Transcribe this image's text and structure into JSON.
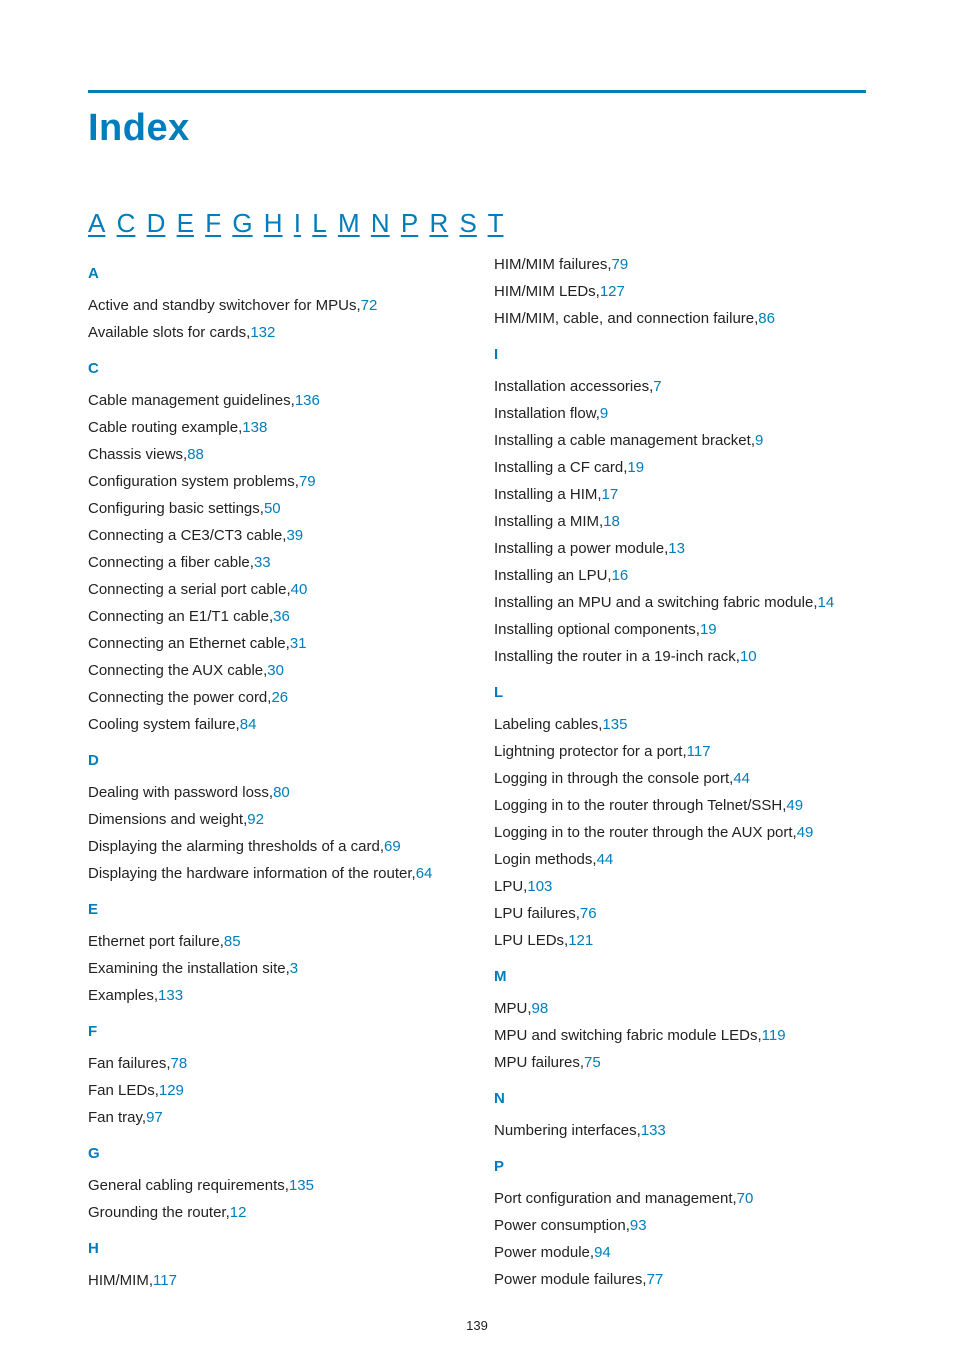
{
  "colors": {
    "brand": "#007dba",
    "text": "#222222",
    "rule": "#007dba"
  },
  "title": "Index",
  "nav_letters": [
    "A",
    "C",
    "D",
    "E",
    "F",
    "G",
    "H",
    "I",
    "L",
    "M",
    "N",
    "P",
    "R",
    "S",
    "T"
  ],
  "page_number": "139",
  "columns": [
    [
      {
        "letter": "A",
        "items": [
          {
            "text": "Active and standby switchover for MPUs,",
            "page": "72"
          },
          {
            "text": "Available slots for cards,",
            "page": "132"
          }
        ]
      },
      {
        "letter": "C",
        "items": [
          {
            "text": "Cable management guidelines,",
            "page": "136"
          },
          {
            "text": "Cable routing example,",
            "page": "138"
          },
          {
            "text": "Chassis views,",
            "page": "88"
          },
          {
            "text": "Configuration system problems,",
            "page": "79"
          },
          {
            "text": "Configuring basic settings,",
            "page": "50"
          },
          {
            "text": "Connecting a CE3/CT3 cable,",
            "page": "39"
          },
          {
            "text": "Connecting a fiber cable,",
            "page": "33"
          },
          {
            "text": "Connecting a serial port cable,",
            "page": "40"
          },
          {
            "text": "Connecting an E1/T1 cable,",
            "page": "36"
          },
          {
            "text": "Connecting an Ethernet cable,",
            "page": "31"
          },
          {
            "text": "Connecting the AUX cable,",
            "page": "30"
          },
          {
            "text": "Connecting the power cord,",
            "page": "26"
          },
          {
            "text": "Cooling system failure,",
            "page": "84"
          }
        ]
      },
      {
        "letter": "D",
        "items": [
          {
            "text": "Dealing with password loss,",
            "page": "80"
          },
          {
            "text": "Dimensions and weight,",
            "page": "92"
          },
          {
            "text": "Displaying the alarming thresholds of a card,",
            "page": "69"
          },
          {
            "text": "Displaying the hardware information of the router,",
            "page": "64"
          }
        ]
      },
      {
        "letter": "E",
        "items": [
          {
            "text": "Ethernet port failure,",
            "page": "85"
          },
          {
            "text": "Examining the installation site,",
            "page": "3"
          },
          {
            "text": "Examples,",
            "page": "133"
          }
        ]
      },
      {
        "letter": "F",
        "items": [
          {
            "text": "Fan failures,",
            "page": "78"
          },
          {
            "text": "Fan LEDs,",
            "page": "129"
          },
          {
            "text": "Fan tray,",
            "page": "97"
          }
        ]
      },
      {
        "letter": "G",
        "items": [
          {
            "text": "General cabling requirements,",
            "page": "135"
          },
          {
            "text": "Grounding the router,",
            "page": "12"
          }
        ]
      },
      {
        "letter": "H",
        "items": [
          {
            "text": "HIM/MIM,",
            "page": "117"
          }
        ]
      }
    ],
    [
      {
        "letter": null,
        "items": [
          {
            "text": "HIM/MIM failures,",
            "page": "79"
          },
          {
            "text": "HIM/MIM LEDs,",
            "page": "127"
          },
          {
            "text": "HIM/MIM, cable, and connection failure,",
            "page": "86"
          }
        ]
      },
      {
        "letter": "I",
        "items": [
          {
            "text": "Installation accessories,",
            "page": "7"
          },
          {
            "text": "Installation flow,",
            "page": "9"
          },
          {
            "text": "Installing a cable management bracket,",
            "page": "9"
          },
          {
            "text": "Installing a CF card,",
            "page": "19"
          },
          {
            "text": "Installing a HIM,",
            "page": "17"
          },
          {
            "text": "Installing a MIM,",
            "page": "18"
          },
          {
            "text": "Installing a power module,",
            "page": "13"
          },
          {
            "text": "Installing an LPU,",
            "page": "16"
          },
          {
            "text": "Installing an MPU and a switching fabric module,",
            "page": "14"
          },
          {
            "text": "Installing optional components,",
            "page": "19"
          },
          {
            "text": "Installing the router in a 19-inch rack,",
            "page": "10"
          }
        ]
      },
      {
        "letter": "L",
        "items": [
          {
            "text": "Labeling cables,",
            "page": "135"
          },
          {
            "text": "Lightning protector for a port,",
            "page": "117"
          },
          {
            "text": "Logging in through the console port,",
            "page": "44"
          },
          {
            "text": "Logging in to the router through Telnet/SSH,",
            "page": "49"
          },
          {
            "text": "Logging in to the router through the AUX port,",
            "page": "49"
          },
          {
            "text": "Login methods,",
            "page": "44"
          },
          {
            "text": "LPU,",
            "page": "103"
          },
          {
            "text": "LPU failures,",
            "page": "76"
          },
          {
            "text": "LPU LEDs,",
            "page": "121"
          }
        ]
      },
      {
        "letter": "M",
        "items": [
          {
            "text": "MPU,",
            "page": "98"
          },
          {
            "text": "MPU and switching fabric module LEDs,",
            "page": "119"
          },
          {
            "text": "MPU failures,",
            "page": "75"
          }
        ]
      },
      {
        "letter": "N",
        "items": [
          {
            "text": "Numbering interfaces,",
            "page": "133"
          }
        ]
      },
      {
        "letter": "P",
        "items": [
          {
            "text": "Port configuration and management,",
            "page": "70"
          },
          {
            "text": "Power consumption,",
            "page": "93"
          },
          {
            "text": "Power module,",
            "page": "94"
          },
          {
            "text": "Power module failures,",
            "page": "77"
          }
        ]
      }
    ]
  ]
}
